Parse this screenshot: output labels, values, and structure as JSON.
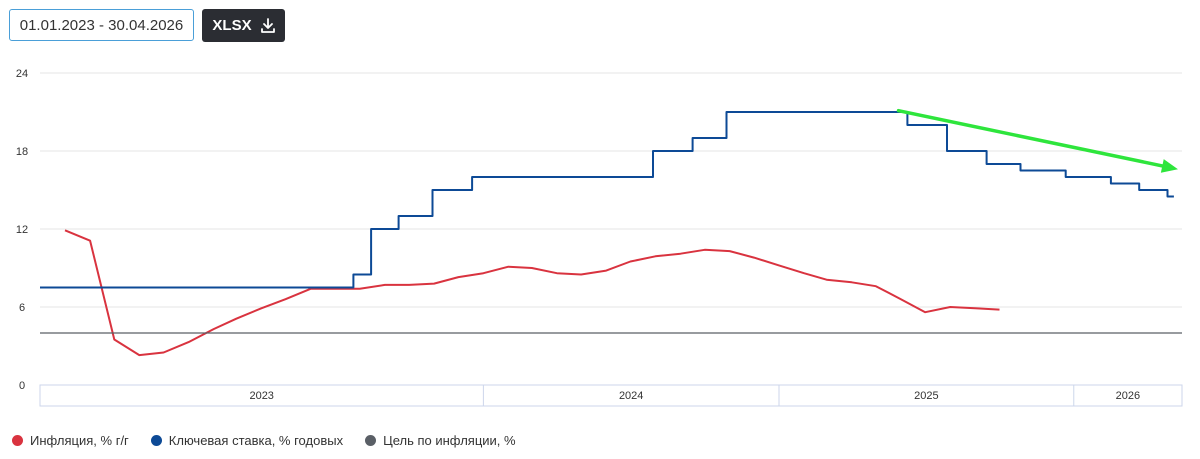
{
  "toolbar": {
    "date_range": "01.01.2023 - 30.04.2026",
    "export_label": "XLSX"
  },
  "colors": {
    "inflation": "#d9333f",
    "key_rate": "#0d4a96",
    "target": "#5a5f66",
    "arrow": "#2ee53c"
  },
  "chart_data": {
    "type": "line",
    "ylim": [
      0,
      26
    ],
    "y_ticks": [
      0,
      6,
      12,
      18,
      24
    ],
    "x_range": [
      "2022-07-01",
      "2026-05-15"
    ],
    "x_period_labels": [
      {
        "label": "2023",
        "start": "2022-07-01",
        "end": "2024-01-01"
      },
      {
        "label": "2024",
        "start": "2024-01-01",
        "end": "2025-01-01"
      },
      {
        "label": "2025",
        "start": "2025-01-01",
        "end": "2026-01-01"
      },
      {
        "label": "2026",
        "start": "2026-01-01",
        "end": "2026-05-15"
      }
    ],
    "series": [
      {
        "name": "Инфляция, % г/г",
        "key": "inflation",
        "step": false,
        "points": [
          [
            "2022-08-01",
            11.9
          ],
          [
            "2022-09-01",
            11.1
          ],
          [
            "2022-10-01",
            3.5
          ],
          [
            "2022-11-01",
            2.3
          ],
          [
            "2022-12-01",
            2.5
          ],
          [
            "2023-01-01",
            3.3
          ],
          [
            "2023-02-01",
            4.3
          ],
          [
            "2023-03-01",
            5.1
          ],
          [
            "2023-04-01",
            5.9
          ],
          [
            "2023-05-01",
            6.6
          ],
          [
            "2023-06-01",
            7.4
          ],
          [
            "2023-07-01",
            7.4
          ],
          [
            "2023-08-01",
            7.4
          ],
          [
            "2023-09-01",
            7.7
          ],
          [
            "2023-10-01",
            7.7
          ],
          [
            "2023-11-01",
            7.8
          ],
          [
            "2023-12-01",
            8.3
          ],
          [
            "2024-01-01",
            8.6
          ],
          [
            "2024-02-01",
            9.1
          ],
          [
            "2024-03-01",
            9.0
          ],
          [
            "2024-04-01",
            8.6
          ],
          [
            "2024-05-01",
            8.5
          ],
          [
            "2024-06-01",
            8.8
          ],
          [
            "2024-07-01",
            9.5
          ],
          [
            "2024-08-01",
            9.9
          ],
          [
            "2024-09-01",
            10.1
          ],
          [
            "2024-10-01",
            10.4
          ],
          [
            "2024-11-01",
            10.3
          ],
          [
            "2024-12-01",
            9.8
          ],
          [
            "2025-01-01",
            9.2
          ],
          [
            "2025-02-01",
            8.6
          ],
          [
            "2025-03-01",
            8.1
          ],
          [
            "2025-04-01",
            7.9
          ],
          [
            "2025-05-01",
            7.6
          ],
          [
            "2025-06-01",
            6.6
          ],
          [
            "2025-07-01",
            5.6
          ],
          [
            "2025-08-01",
            6.0
          ],
          [
            "2025-09-01",
            5.9
          ],
          [
            "2025-10-01",
            5.8
          ]
        ]
      },
      {
        "name": "Ключевая ставка, % годовых",
        "key": "key_rate",
        "step": true,
        "points": [
          [
            "2022-07-01",
            7.5
          ],
          [
            "2023-07-24",
            8.5
          ],
          [
            "2023-08-15",
            12.0
          ],
          [
            "2023-09-18",
            13.0
          ],
          [
            "2023-10-30",
            15.0
          ],
          [
            "2023-12-18",
            16.0
          ],
          [
            "2024-07-29",
            18.0
          ],
          [
            "2024-09-16",
            19.0
          ],
          [
            "2024-10-28",
            21.0
          ],
          [
            "2025-06-09",
            20.0
          ],
          [
            "2025-07-28",
            18.0
          ],
          [
            "2025-09-15",
            17.0
          ],
          [
            "2025-10-27",
            16.5
          ],
          [
            "2025-12-22",
            16.0
          ],
          [
            "2026-02-16",
            15.5
          ],
          [
            "2026-03-23",
            15.0
          ],
          [
            "2026-04-27",
            14.5
          ],
          [
            "2026-05-05",
            14.5
          ]
        ]
      },
      {
        "name": "Цель по инфляции, %",
        "key": "target",
        "step": false,
        "points": [
          [
            "2022-07-01",
            4.0
          ],
          [
            "2026-05-15",
            4.0
          ]
        ]
      }
    ],
    "annotation": {
      "type": "arrow",
      "from": [
        "2025-05-29",
        21.1
      ],
      "to": [
        "2026-05-10",
        16.6
      ]
    },
    "grid": true
  }
}
